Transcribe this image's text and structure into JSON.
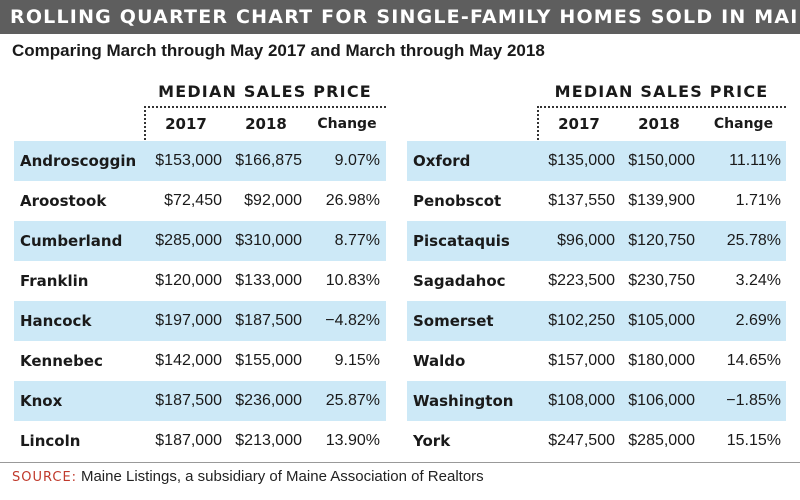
{
  "title": "ROLLING QUARTER CHART FOR SINGLE-FAMILY HOMES SOLD IN MAINE",
  "subtitle": "Comparing March through May 2017 and March through May 2018",
  "colors": {
    "title_bar": "#5e5e5e",
    "row_shade": "#cde9f7",
    "source_label": "#c0392b"
  },
  "chart_data": {
    "type": "table",
    "title": "ROLLING QUARTER CHART FOR SINGLE-FAMILY HOMES SOLD IN MAINE",
    "subtitle": "Comparing March through May 2017 and March through May 2018",
    "group_header": "MEDIAN SALES PRICE",
    "columns": [
      "2017",
      "2018",
      "Change"
    ],
    "left_rows": [
      {
        "county": "Androscoggin",
        "y2017": "$153,000",
        "y2018": "$166,875",
        "change": "9.07%"
      },
      {
        "county": "Aroostook",
        "y2017": "$72,450",
        "y2018": "$92,000",
        "change": "26.98%"
      },
      {
        "county": "Cumberland",
        "y2017": "$285,000",
        "y2018": "$310,000",
        "change": "8.77%"
      },
      {
        "county": "Franklin",
        "y2017": "$120,000",
        "y2018": "$133,000",
        "change": "10.83%"
      },
      {
        "county": "Hancock",
        "y2017": "$197,000",
        "y2018": "$187,500",
        "change": "−4.82%"
      },
      {
        "county": "Kennebec",
        "y2017": "$142,000",
        "y2018": "$155,000",
        "change": "9.15%"
      },
      {
        "county": "Knox",
        "y2017": "$187,500",
        "y2018": "$236,000",
        "change": "25.87%"
      },
      {
        "county": "Lincoln",
        "y2017": "$187,000",
        "y2018": "$213,000",
        "change": "13.90%"
      }
    ],
    "right_rows": [
      {
        "county": "Oxford",
        "y2017": "$135,000",
        "y2018": "$150,000",
        "change": "11.11%"
      },
      {
        "county": "Penobscot",
        "y2017": "$137,550",
        "y2018": "$139,900",
        "change": "1.71%"
      },
      {
        "county": "Piscataquis",
        "y2017": "$96,000",
        "y2018": "$120,750",
        "change": "25.78%"
      },
      {
        "county": "Sagadahoc",
        "y2017": "$223,500",
        "y2018": "$230,750",
        "change": "3.24%"
      },
      {
        "county": "Somerset",
        "y2017": "$102,250",
        "y2018": "$105,000",
        "change": "2.69%"
      },
      {
        "county": "Waldo",
        "y2017": "$157,000",
        "y2018": "$180,000",
        "change": "14.65%"
      },
      {
        "county": "Washington",
        "y2017": "$108,000",
        "y2018": "$106,000",
        "change": "−1.85%"
      },
      {
        "county": "York",
        "y2017": "$247,500",
        "y2018": "$285,000",
        "change": "15.15%"
      }
    ]
  },
  "source": {
    "label": "SOURCE:",
    "text": "Maine Listings, a subsidiary of Maine Association of Realtors"
  }
}
